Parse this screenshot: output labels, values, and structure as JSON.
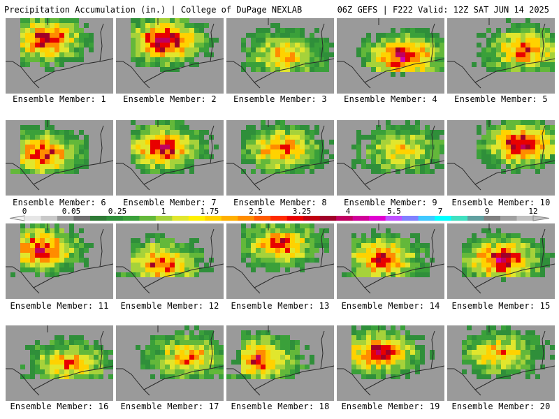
{
  "header": {
    "title": "Precipitation Accumulation (in.) | College of DuPage NEXLAB",
    "run_info": "06Z GEFS | F222 Valid: 12Z SAT JUN 14 2025"
  },
  "colors": {
    "background": "#ffffff",
    "text": "#000000",
    "state_borders": "#2a2a2a"
  },
  "colorbar": {
    "labels": [
      "0",
      "0.05",
      "0.25",
      "1",
      "1.75",
      "2.5",
      "3.25",
      "4",
      "5.5",
      "7",
      "9",
      "12"
    ],
    "bins": [
      "#e6e6e6",
      "#c8c8c8",
      "#9a9a9a",
      "#6f6f6f",
      "#2e7a35",
      "#2f8f3a",
      "#3aa03a",
      "#63b83a",
      "#a6d23a",
      "#e1e62d",
      "#fff000",
      "#ffd200",
      "#ffb000",
      "#ff8c00",
      "#ff5a00",
      "#ff2a00",
      "#e80000",
      "#c00010",
      "#a00028",
      "#c00060",
      "#d00098",
      "#e000d0",
      "#c050ff",
      "#8080ff",
      "#40c8ff",
      "#00ffff",
      "#40e0c0",
      "#60a0a0",
      "#808080",
      "#a0a0a0",
      "#c0c0c0"
    ]
  },
  "panels": [
    {
      "label": "Ensemble Member: 1",
      "intensity": 0.8
    },
    {
      "label": "Ensemble Member: 2",
      "intensity": 0.9
    },
    {
      "label": "Ensemble Member: 3",
      "intensity": 0.6
    },
    {
      "label": "Ensemble Member: 4",
      "intensity": 0.85
    },
    {
      "label": "Ensemble Member: 5",
      "intensity": 0.7
    },
    {
      "label": "Ensemble Member: 6",
      "intensity": 0.75
    },
    {
      "label": "Ensemble Member: 7",
      "intensity": 0.8
    },
    {
      "label": "Ensemble Member: 8",
      "intensity": 0.7
    },
    {
      "label": "Ensemble Member: 9",
      "intensity": 0.55
    },
    {
      "label": "Ensemble Member: 10",
      "intensity": 0.85
    },
    {
      "label": "Ensemble Member: 11",
      "intensity": 0.8
    },
    {
      "label": "Ensemble Member: 12",
      "intensity": 0.75
    },
    {
      "label": "Ensemble Member: 13",
      "intensity": 0.7
    },
    {
      "label": "Ensemble Member: 14",
      "intensity": 0.75
    },
    {
      "label": "Ensemble Member: 15",
      "intensity": 0.85
    },
    {
      "label": "Ensemble Member: 16",
      "intensity": 0.65
    },
    {
      "label": "Ensemble Member: 17",
      "intensity": 0.65
    },
    {
      "label": "Ensemble Member: 18",
      "intensity": 0.75
    },
    {
      "label": "Ensemble Member: 19",
      "intensity": 0.8
    },
    {
      "label": "Ensemble Member: 20",
      "intensity": 0.6
    }
  ]
}
